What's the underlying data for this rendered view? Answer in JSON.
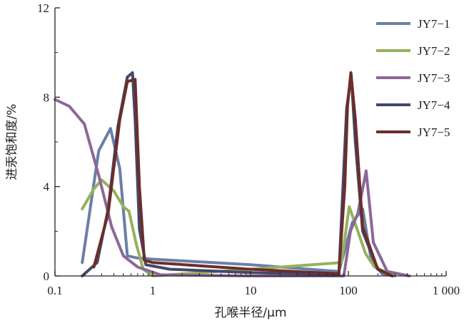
{
  "chart_data": {
    "type": "line",
    "xscale": "log",
    "xlim": [
      0.1,
      1000
    ],
    "ylim": [
      0,
      12
    ],
    "xticks": [
      {
        "value": 0.1,
        "label": "0.1"
      },
      {
        "value": 1,
        "label": "1"
      },
      {
        "value": 10,
        "label": "10"
      },
      {
        "value": 100,
        "label": "100"
      },
      {
        "value": 1000,
        "label": "1 000"
      }
    ],
    "yticks": [
      {
        "value": 0,
        "label": "0"
      },
      {
        "value": 4,
        "label": "4"
      },
      {
        "value": 8,
        "label": "8"
      },
      {
        "value": 12,
        "label": "12"
      }
    ],
    "xlabel": "孔喉半径/μm",
    "ylabel": "进汞饱和度/%",
    "grid": false,
    "legend_position": "top-right",
    "series": [
      {
        "name": "JY7−1",
        "color": "#6a7fa8",
        "points": [
          [
            0.19,
            0.6
          ],
          [
            0.28,
            5.6
          ],
          [
            0.37,
            6.6
          ],
          [
            0.46,
            4.8
          ],
          [
            0.55,
            0.9
          ],
          [
            0.7,
            0.8
          ],
          [
            1,
            0.75
          ],
          [
            10,
            0.5
          ],
          [
            80,
            0.2
          ],
          [
            110,
            2.4
          ],
          [
            140,
            3
          ],
          [
            170,
            0.8
          ],
          [
            220,
            0.1
          ],
          [
            300,
            0
          ]
        ]
      },
      {
        "name": "JY7−2",
        "color": "#96b15c",
        "points": [
          [
            0.19,
            3
          ],
          [
            0.25,
            3.9
          ],
          [
            0.3,
            4.3
          ],
          [
            0.4,
            3.8
          ],
          [
            0.5,
            3.1
          ],
          [
            0.57,
            2.9
          ],
          [
            0.68,
            1.4
          ],
          [
            0.8,
            0.3
          ],
          [
            1,
            0
          ],
          [
            10,
            0.3
          ],
          [
            85,
            0.6
          ],
          [
            102,
            3.1
          ],
          [
            125,
            2
          ],
          [
            150,
            1
          ],
          [
            185,
            0.4
          ],
          [
            300,
            0
          ]
        ]
      },
      {
        "name": "JY7−3",
        "color": "#8d6797",
        "points": [
          [
            0.1,
            7.9
          ],
          [
            0.14,
            7.6
          ],
          [
            0.2,
            6.8
          ],
          [
            0.28,
            4.5
          ],
          [
            0.38,
            2.2
          ],
          [
            0.5,
            0.9
          ],
          [
            0.7,
            0.4
          ],
          [
            1.2,
            0.05
          ],
          [
            10,
            0
          ],
          [
            90,
            0
          ],
          [
            105,
            2
          ],
          [
            125,
            2.8
          ],
          [
            152,
            4.7
          ],
          [
            180,
            1.5
          ],
          [
            250,
            0.2
          ],
          [
            420,
            0
          ]
        ]
      },
      {
        "name": "JY7−4",
        "color": "#424867",
        "points": [
          [
            0.19,
            0
          ],
          [
            0.27,
            0.6
          ],
          [
            0.35,
            3
          ],
          [
            0.44,
            6.7
          ],
          [
            0.55,
            8.9
          ],
          [
            0.62,
            9.1
          ],
          [
            0.66,
            7
          ],
          [
            0.73,
            2.1
          ],
          [
            0.85,
            0.5
          ],
          [
            1.5,
            0.3
          ],
          [
            10,
            0.15
          ],
          [
            80,
            0.05
          ],
          [
            96,
            7.5
          ],
          [
            107,
            9
          ],
          [
            118,
            6
          ],
          [
            140,
            2
          ],
          [
            200,
            0.3
          ],
          [
            280,
            0
          ]
        ]
      },
      {
        "name": "JY7−5",
        "color": "#6c2d2b",
        "points": [
          [
            0.25,
            0.4
          ],
          [
            0.35,
            2.8
          ],
          [
            0.46,
            7
          ],
          [
            0.55,
            8.7
          ],
          [
            0.66,
            8.8
          ],
          [
            0.73,
            4
          ],
          [
            0.82,
            0.7
          ],
          [
            1,
            0.6
          ],
          [
            10,
            0.3
          ],
          [
            80,
            0.1
          ],
          [
            92,
            4
          ],
          [
            98,
            7.6
          ],
          [
            106,
            9.1
          ],
          [
            118,
            7
          ],
          [
            140,
            2.2
          ],
          [
            200,
            0.3
          ],
          [
            280,
            0
          ]
        ]
      }
    ]
  }
}
